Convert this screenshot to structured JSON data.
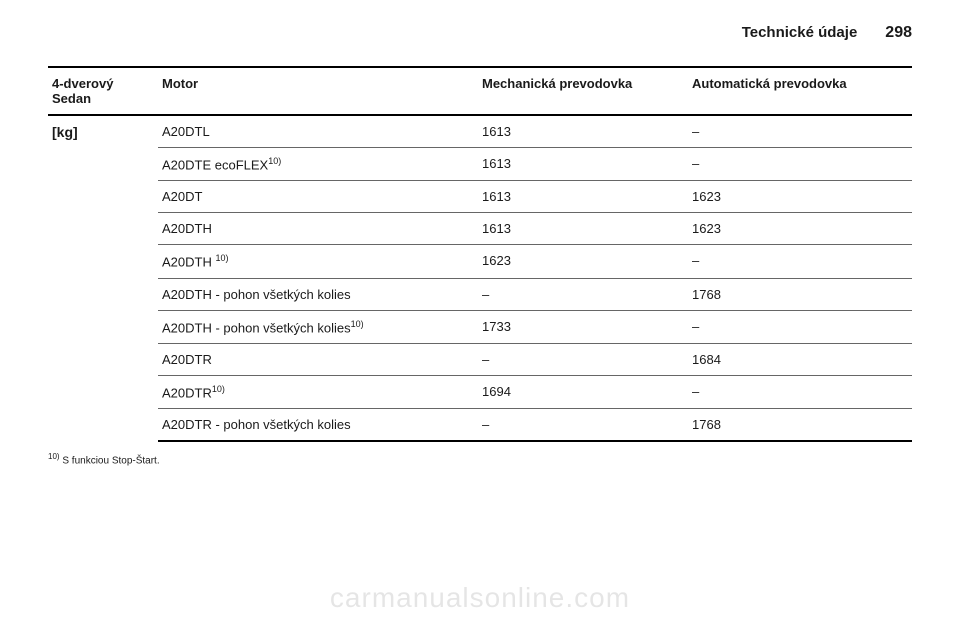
{
  "header": {
    "section_title": "Technické údaje",
    "page_number": "298"
  },
  "table": {
    "columns": {
      "c0": "4-dverový Sedan",
      "c1": "Motor",
      "c2": "Mechanická prevodovka",
      "c3": "Automatická prevodovka"
    },
    "unit_label": "[kg]",
    "rows": [
      {
        "motor": "A20DTL",
        "sup": "",
        "mech": "1613",
        "auto": "–"
      },
      {
        "motor": "A20DTE ecoFLEX",
        "sup": "10)",
        "mech": "1613",
        "auto": "–"
      },
      {
        "motor": "A20DT",
        "sup": "",
        "mech": "1613",
        "auto": "1623"
      },
      {
        "motor": "A20DTH",
        "sup": "",
        "mech": "1613",
        "auto": "1623"
      },
      {
        "motor": "A20DTH ",
        "sup": "10)",
        "mech": "1623",
        "auto": "–"
      },
      {
        "motor": "A20DTH - pohon všetkých kolies",
        "sup": "",
        "mech": "–",
        "auto": "1768"
      },
      {
        "motor": "A20DTH - pohon všetkých kolies",
        "sup": "10)",
        "mech": "1733",
        "auto": "–"
      },
      {
        "motor": "A20DTR",
        "sup": "",
        "mech": "–",
        "auto": "1684"
      },
      {
        "motor": "A20DTR",
        "sup": "10)",
        "mech": "1694",
        "auto": "–"
      },
      {
        "motor": "A20DTR - pohon všetkých kolies",
        "sup": "",
        "mech": "–",
        "auto": "1768"
      }
    ]
  },
  "footnote": {
    "marker": "10)",
    "text": "S funkciou Stop-Štart."
  },
  "watermark": "carmanualsonline.com"
}
